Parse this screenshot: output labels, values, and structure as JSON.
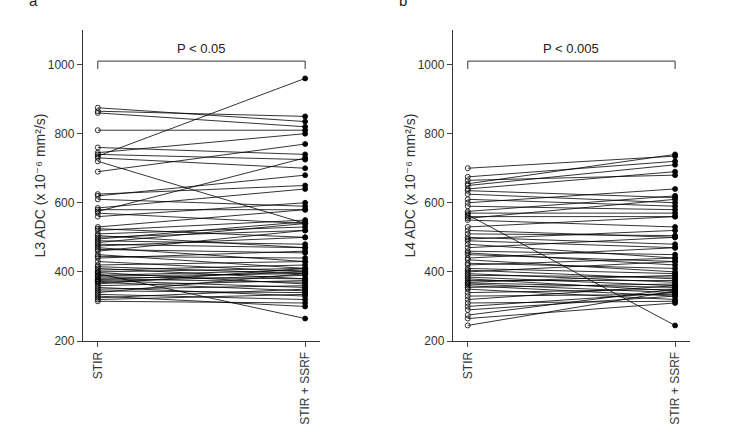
{
  "chart_data": [
    {
      "type": "line",
      "title": "a",
      "y_label": "L3 ADC (x 10⁻⁶ mm²/s)",
      "categories": [
        "STIR",
        "STIR + SSRF"
      ],
      "color": "#000000",
      "ylim": [
        200,
        1100
      ],
      "yticks": [
        200,
        400,
        600,
        800,
        1000
      ],
      "grid": false,
      "annotations": [
        {
          "text": "P < 0.05"
        }
      ],
      "series": [
        {
          "values": [
            875,
            835
          ]
        },
        {
          "values": [
            865,
            850
          ]
        },
        {
          "values": [
            860,
            820
          ]
        },
        {
          "values": [
            810,
            810
          ]
        },
        {
          "values": [
            760,
            740
          ]
        },
        {
          "values": [
            745,
            800
          ]
        },
        {
          "values": [
            740,
            725
          ]
        },
        {
          "values": [
            735,
            960
          ]
        },
        {
          "values": [
            730,
            700
          ]
        },
        {
          "values": [
            720,
            540
          ]
        },
        {
          "values": [
            690,
            770
          ]
        },
        {
          "values": [
            625,
            650
          ]
        },
        {
          "values": [
            620,
            680
          ]
        },
        {
          "values": [
            610,
            590
          ]
        },
        {
          "values": [
            585,
            640
          ]
        },
        {
          "values": [
            580,
            580
          ]
        },
        {
          "values": [
            575,
            730
          ]
        },
        {
          "values": [
            570,
            540
          ]
        },
        {
          "values": [
            560,
            600
          ]
        },
        {
          "values": [
            530,
            580
          ]
        },
        {
          "values": [
            525,
            500
          ]
        },
        {
          "values": [
            520,
            550
          ]
        },
        {
          "values": [
            510,
            530
          ]
        },
        {
          "values": [
            505,
            470
          ]
        },
        {
          "values": [
            500,
            520
          ]
        },
        {
          "values": [
            495,
            545
          ]
        },
        {
          "values": [
            490,
            480
          ]
        },
        {
          "values": [
            485,
            540
          ]
        },
        {
          "values": [
            480,
            470
          ]
        },
        {
          "values": [
            475,
            500
          ]
        },
        {
          "values": [
            470,
            430
          ]
        },
        {
          "values": [
            465,
            455
          ]
        },
        {
          "values": [
            460,
            520
          ]
        },
        {
          "values": [
            450,
            410
          ]
        },
        {
          "values": [
            445,
            440
          ]
        },
        {
          "values": [
            440,
            460
          ]
        },
        {
          "values": [
            430,
            400
          ]
        },
        {
          "values": [
            420,
            430
          ]
        },
        {
          "values": [
            415,
            395
          ]
        },
        {
          "values": [
            410,
            380
          ]
        },
        {
          "values": [
            405,
            420
          ]
        },
        {
          "values": [
            400,
            410
          ]
        },
        {
          "values": [
            398,
            365
          ]
        },
        {
          "values": [
            395,
            265
          ]
        },
        {
          "values": [
            390,
            405
          ]
        },
        {
          "values": [
            388,
            395
          ]
        },
        {
          "values": [
            385,
            380
          ]
        },
        {
          "values": [
            380,
            370
          ]
        },
        {
          "values": [
            378,
            400
          ]
        },
        {
          "values": [
            375,
            355
          ]
        },
        {
          "values": [
            372,
            390
          ]
        },
        {
          "values": [
            370,
            345
          ]
        },
        {
          "values": [
            365,
            410
          ]
        },
        {
          "values": [
            360,
            375
          ]
        },
        {
          "values": [
            355,
            330
          ]
        },
        {
          "values": [
            350,
            360
          ]
        },
        {
          "values": [
            345,
            340
          ]
        },
        {
          "values": [
            340,
            395
          ]
        },
        {
          "values": [
            335,
            320
          ]
        },
        {
          "values": [
            330,
            300
          ]
        },
        {
          "values": [
            325,
            350
          ]
        },
        {
          "values": [
            320,
            335
          ]
        },
        {
          "values": [
            315,
            310
          ]
        }
      ]
    },
    {
      "type": "line",
      "title": "b",
      "y_label": "L4 ADC (x 10⁻⁶ mm²/s)",
      "categories": [
        "STIR",
        "STIR + SSRF"
      ],
      "color": "#000000",
      "ylim": [
        200,
        1100
      ],
      "yticks": [
        200,
        400,
        600,
        800,
        1000
      ],
      "grid": false,
      "annotations": [
        {
          "text": "P < 0.005"
        }
      ],
      "series": [
        {
          "values": [
            700,
            735
          ]
        },
        {
          "values": [
            675,
            720
          ]
        },
        {
          "values": [
            665,
            680
          ]
        },
        {
          "values": [
            655,
            740
          ]
        },
        {
          "values": [
            650,
            710
          ]
        },
        {
          "values": [
            640,
            690
          ]
        },
        {
          "values": [
            635,
            615
          ]
        },
        {
          "values": [
            625,
            600
          ]
        },
        {
          "values": [
            610,
            590
          ]
        },
        {
          "values": [
            600,
            640
          ]
        },
        {
          "values": [
            590,
            580
          ]
        },
        {
          "values": [
            575,
            620
          ]
        },
        {
          "values": [
            570,
            570
          ]
        },
        {
          "values": [
            565,
            245
          ]
        },
        {
          "values": [
            560,
            560
          ]
        },
        {
          "values": [
            555,
            610
          ]
        },
        {
          "values": [
            550,
            530
          ]
        },
        {
          "values": [
            530,
            560
          ]
        },
        {
          "values": [
            520,
            500
          ]
        },
        {
          "values": [
            510,
            505
          ]
        },
        {
          "values": [
            500,
            480
          ]
        },
        {
          "values": [
            495,
            520
          ]
        },
        {
          "values": [
            490,
            470
          ]
        },
        {
          "values": [
            480,
            440
          ]
        },
        {
          "values": [
            470,
            500
          ]
        },
        {
          "values": [
            460,
            450
          ]
        },
        {
          "values": [
            455,
            420
          ]
        },
        {
          "values": [
            450,
            430
          ]
        },
        {
          "values": [
            440,
            470
          ]
        },
        {
          "values": [
            435,
            400
          ]
        },
        {
          "values": [
            425,
            410
          ]
        },
        {
          "values": [
            420,
            440
          ]
        },
        {
          "values": [
            410,
            395
          ]
        },
        {
          "values": [
            405,
            380
          ]
        },
        {
          "values": [
            400,
            430
          ]
        },
        {
          "values": [
            395,
            370
          ]
        },
        {
          "values": [
            390,
            385
          ]
        },
        {
          "values": [
            385,
            360
          ]
        },
        {
          "values": [
            380,
            345
          ]
        },
        {
          "values": [
            375,
            375
          ]
        },
        {
          "values": [
            370,
            390
          ]
        },
        {
          "values": [
            368,
            355
          ]
        },
        {
          "values": [
            365,
            340
          ]
        },
        {
          "values": [
            360,
            330
          ]
        },
        {
          "values": [
            355,
            365
          ]
        },
        {
          "values": [
            350,
            320
          ]
        },
        {
          "values": [
            340,
            350
          ]
        },
        {
          "values": [
            330,
            335
          ]
        },
        {
          "values": [
            320,
            360
          ]
        },
        {
          "values": [
            310,
            315
          ]
        },
        {
          "values": [
            300,
            340
          ]
        },
        {
          "values": [
            290,
            330
          ]
        },
        {
          "values": [
            275,
            350
          ]
        },
        {
          "values": [
            265,
            310
          ]
        },
        {
          "values": [
            245,
            345
          ]
        }
      ]
    }
  ]
}
